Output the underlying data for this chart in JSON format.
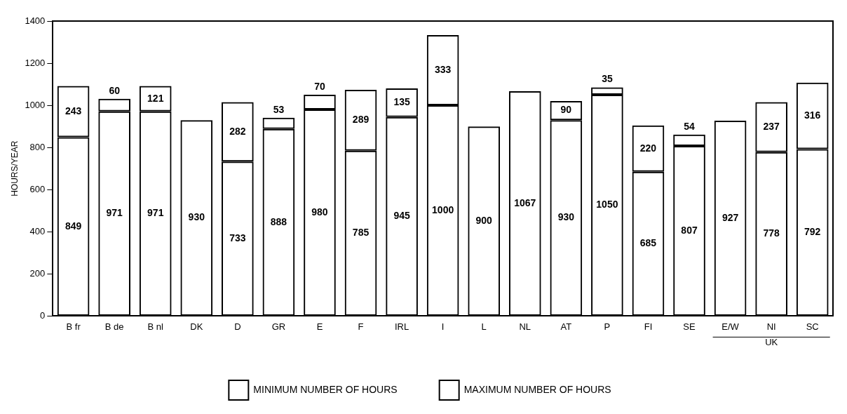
{
  "chart_data": {
    "type": "bar",
    "stacked": true,
    "data_labels": true,
    "ylabel": "HOURS/YEAR",
    "categories": [
      "B fr",
      "B de",
      "B nl",
      "DK",
      "D",
      "GR",
      "E",
      "F",
      "IRL",
      "I",
      "L",
      "NL",
      "AT",
      "P",
      "FI",
      "SE",
      "E/W",
      "NI",
      "SC"
    ],
    "series": [
      {
        "name": "MINIMUM NUMBER OF HOURS",
        "color": "#000000",
        "values": [
          849,
          971,
          971,
          930,
          733,
          888,
          980,
          785,
          945,
          1000,
          900,
          1067,
          930,
          1050,
          685,
          807,
          927,
          778,
          792
        ]
      },
      {
        "name": "MAXIMUM NUMBER OF HOURS",
        "color": "#000000",
        "values": [
          243,
          60,
          121,
          null,
          282,
          53,
          70,
          289,
          135,
          333,
          null,
          null,
          90,
          35,
          220,
          54,
          null,
          237,
          316
        ]
      }
    ],
    "ylim": [
      0,
      1400
    ],
    "yticks": [
      0,
      200,
      400,
      600,
      800,
      1000,
      1200,
      1400
    ],
    "grid": false,
    "legend": "bottom",
    "annotations": [
      "UK"
    ]
  }
}
